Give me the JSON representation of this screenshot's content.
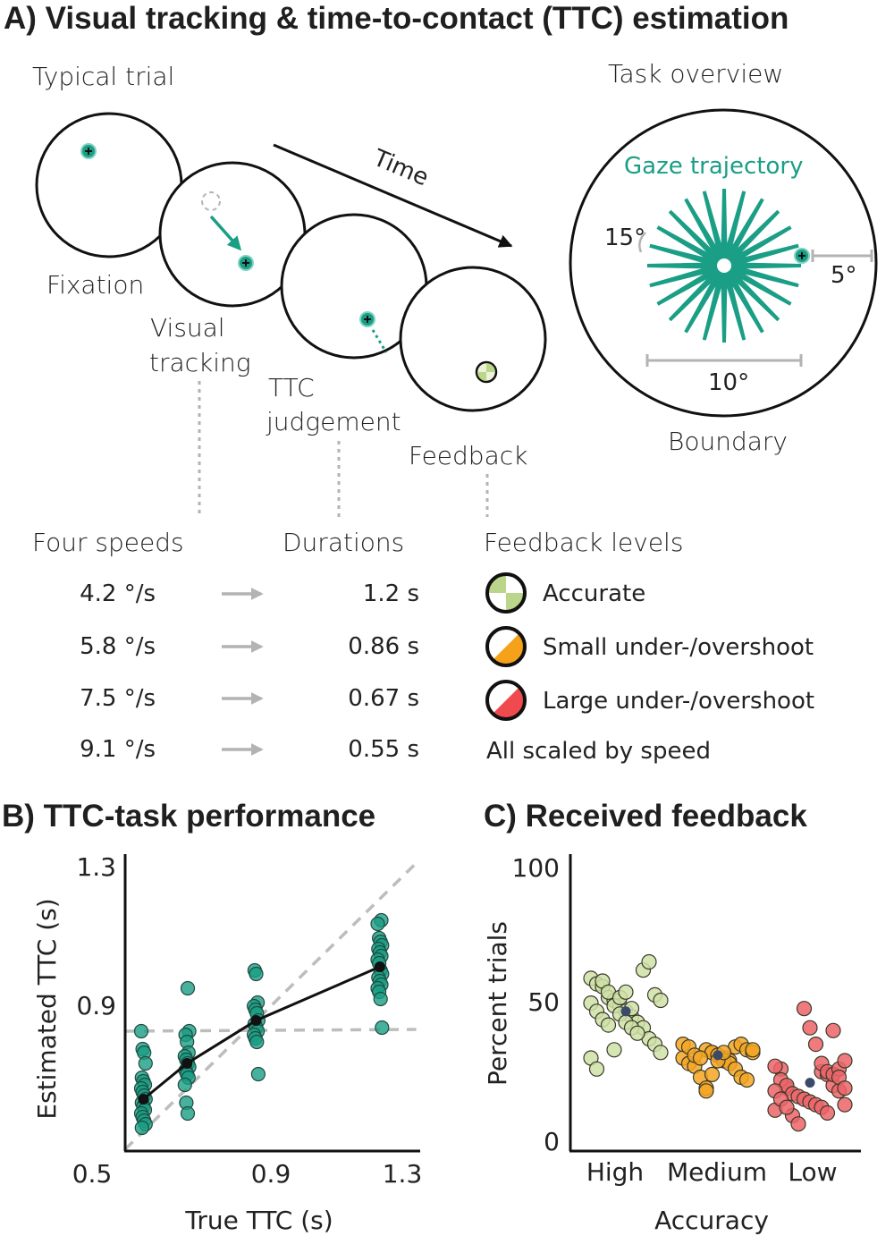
{
  "panel_a": {
    "title": "A) Visual tracking & time-to-contact (TTC) estimation",
    "typical_trial_label": "Typical trial",
    "task_overview_label": "Task overview",
    "time_label": "Time",
    "stages": [
      "Fixation",
      "Visual tracking",
      "TTC judgement",
      "Feedback"
    ],
    "stage_lines": {
      "fixation": "Fixation",
      "visual_1": "Visual",
      "visual_2": "tracking",
      "ttc_1": "TTC",
      "ttc_2": "judgement",
      "feedback": "Feedback"
    },
    "overview": {
      "gaze_label": "Gaze trajectory",
      "angle_label": "15°",
      "distance_label": "5°",
      "diameter_label": "10°",
      "boundary_label": "Boundary"
    },
    "speeds_header": "Four speeds",
    "durations_header": "Durations",
    "feedback_header": "Feedback levels",
    "rows": [
      {
        "speed": "4.2 °/s",
        "duration": "1.2 s"
      },
      {
        "speed": "5.8 °/s",
        "duration": "0.86 s"
      },
      {
        "speed": "7.5 °/s",
        "duration": "0.67 s"
      },
      {
        "speed": "9.1 °/s",
        "duration": "0.55 s"
      }
    ],
    "feedback_levels": [
      {
        "label": "Accurate",
        "color": "#b9d68a",
        "icon": "checkered-circle-icon"
      },
      {
        "label": "Small under-/overshoot",
        "color": "#f5a21a",
        "icon": "half-filled-circle-icon"
      },
      {
        "label": "Large under-/overshoot",
        "color": "#ef4b4f",
        "icon": "half-filled-circle-icon"
      }
    ],
    "scaled_note": "All scaled by speed",
    "colors": {
      "teal": "#1a9e85",
      "grey": "#b3b3b3"
    }
  },
  "chart_data": [
    {
      "type": "scatter",
      "title": "B) TTC-task performance",
      "xlabel": "True TTC (s)",
      "ylabel": "Estimated TTC (s)",
      "xlim": [
        0.5,
        1.3
      ],
      "ylim": [
        0.5,
        1.3
      ],
      "xticks": [
        "0.5",
        "0.9",
        "1.3"
      ],
      "yticks": [
        "1.3",
        "0.9"
      ],
      "point_color": "#1a9e85",
      "reference_lines": [
        {
          "name": "identity",
          "from": [
            0.5,
            0.5
          ],
          "to": [
            1.3,
            1.3
          ],
          "style": "dashed"
        },
        {
          "name": "mean-response",
          "from": [
            0.5,
            0.83
          ],
          "to": [
            1.3,
            0.835
          ],
          "style": "dashed"
        }
      ],
      "mean_series": {
        "name": "mean",
        "x": [
          0.55,
          0.67,
          0.86,
          1.2
        ],
        "y": [
          0.64,
          0.74,
          0.86,
          1.01
        ]
      },
      "groups": [
        {
          "x": 0.55,
          "y": [
            0.83,
            0.78,
            0.77,
            0.74,
            0.7,
            0.69,
            0.68,
            0.67,
            0.66,
            0.65,
            0.64,
            0.63,
            0.62,
            0.61,
            0.6,
            0.59,
            0.58,
            0.57,
            0.56
          ]
        },
        {
          "x": 0.67,
          "y": [
            0.95,
            0.83,
            0.82,
            0.8,
            0.77,
            0.76,
            0.75,
            0.74,
            0.73,
            0.72,
            0.71,
            0.7,
            0.68,
            0.63,
            0.6
          ]
        },
        {
          "x": 0.86,
          "y": [
            1.0,
            0.99,
            0.91,
            0.9,
            0.89,
            0.88,
            0.86,
            0.85,
            0.84,
            0.83,
            0.82,
            0.81,
            0.8,
            0.71
          ]
        },
        {
          "x": 1.2,
          "y": [
            1.14,
            1.13,
            1.09,
            1.08,
            1.07,
            1.06,
            1.05,
            1.04,
            1.03,
            1.02,
            1.0,
            0.99,
            0.98,
            0.97,
            0.96,
            0.95,
            0.94,
            0.92,
            0.84
          ]
        }
      ]
    },
    {
      "type": "scatter",
      "title": "C) Received feedback",
      "xlabel": "Accuracy",
      "ylabel": "Percent trials",
      "categories": [
        "High",
        "Medium",
        "Low"
      ],
      "ylim": [
        0,
        100
      ],
      "yticks": [
        "100",
        "50",
        "0"
      ],
      "series": [
        {
          "name": "High",
          "color": "#cfe1a7",
          "mean": 46,
          "values": [
            58,
            56,
            55,
            51,
            50,
            48,
            46,
            44,
            42,
            40,
            36,
            34,
            31,
            29,
            25,
            57,
            53,
            48,
            45,
            42,
            40,
            38,
            61,
            64,
            52,
            50,
            49,
            46,
            43,
            41,
            32,
            51,
            53,
            47
          ]
        },
        {
          "name": "Medium",
          "color": "#f5a623",
          "mean": 30,
          "values": [
            32,
            31,
            30,
            29,
            28,
            33,
            34,
            32,
            31,
            29,
            27,
            26,
            22,
            18,
            31,
            30,
            28,
            27,
            25,
            22,
            21,
            32,
            34,
            33,
            30,
            29,
            17,
            23,
            28,
            31
          ]
        },
        {
          "name": "Low",
          "color": "#ec6468",
          "mean": 20,
          "values": [
            24,
            23,
            19,
            17,
            12,
            10,
            25,
            18,
            8,
            5,
            47,
            40,
            34,
            27,
            24,
            23,
            25,
            28,
            26,
            21,
            19,
            16,
            15,
            14,
            13,
            12,
            11,
            9,
            39,
            22,
            18,
            17,
            14,
            11
          ]
        }
      ]
    }
  ]
}
